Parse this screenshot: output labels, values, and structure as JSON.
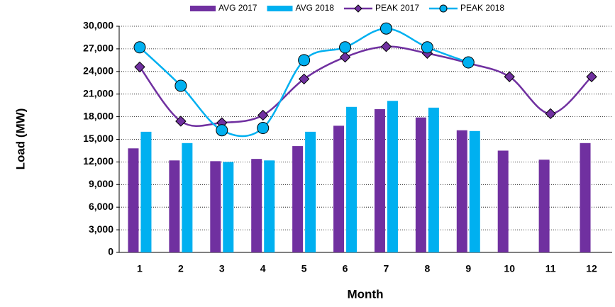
{
  "chart_data": {
    "type": "bar-line",
    "y_label": "Load (MW)",
    "x_label": "Month",
    "categories": [
      "1",
      "2",
      "3",
      "4",
      "5",
      "6",
      "7",
      "8",
      "9",
      "10",
      "11",
      "12"
    ],
    "series": [
      {
        "name": "AVG 2017",
        "type": "bar",
        "color": "#7030a0",
        "values": [
          13800,
          12200,
          12100,
          12400,
          14100,
          16800,
          19000,
          17900,
          16200,
          13500,
          12300,
          14500
        ]
      },
      {
        "name": "AVG 2018",
        "type": "bar",
        "color": "#00b0f0",
        "values": [
          16000,
          14500,
          12000,
          12200,
          16000,
          19300,
          20100,
          19200,
          16100,
          null,
          null,
          null
        ]
      },
      {
        "name": "PEAK 2017",
        "type": "line",
        "marker": "diamond",
        "color": "#7030a0",
        "values": [
          24600,
          17400,
          17200,
          18200,
          23000,
          25900,
          27300,
          26400,
          25100,
          23300,
          18400,
          23300
        ]
      },
      {
        "name": "PEAK 2018",
        "type": "line",
        "marker": "circle",
        "color": "#00b0f0",
        "values": [
          27200,
          22100,
          16200,
          16500,
          25500,
          27200,
          29700,
          27200,
          25200,
          null,
          null,
          null
        ]
      }
    ],
    "ylim": [
      0,
      30000
    ],
    "yticks": [
      0,
      {
        "value": 3000,
        "label": "3,000"
      },
      {
        "value": 6000,
        "label": "6,000"
      },
      {
        "value": 9000,
        "label": "9,000"
      },
      {
        "value": 12000,
        "label": "12,000"
      },
      {
        "value": 15000,
        "label": "15,000"
      },
      {
        "value": 18000,
        "label": "18,000"
      },
      {
        "value": 21000,
        "label": "21,000"
      },
      {
        "value": 24000,
        "label": "24,000"
      },
      {
        "value": 27000,
        "label": "27,000"
      },
      {
        "value": 30000,
        "label": "30,000"
      }
    ],
    "grid": true,
    "legend": "top"
  }
}
